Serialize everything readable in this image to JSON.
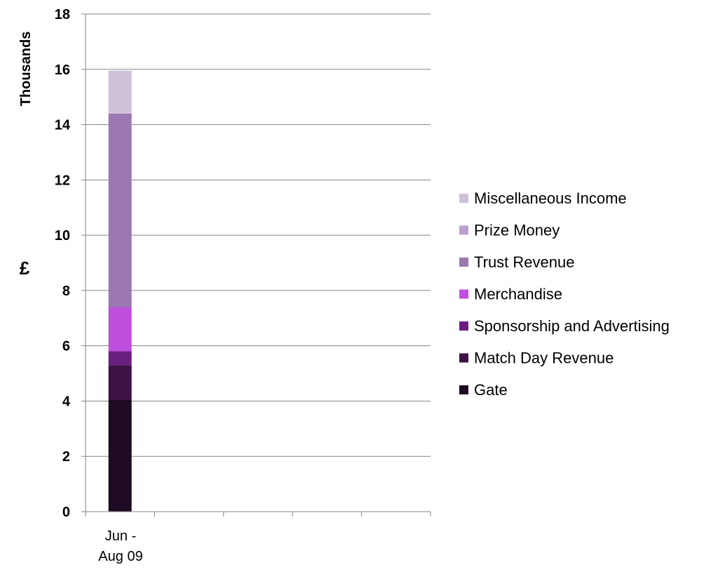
{
  "chart_data": {
    "type": "bar",
    "stacked": true,
    "categories": [
      "Jun - Aug 09"
    ],
    "category_lines": [
      "Jun -",
      "Aug 09"
    ],
    "series": [
      {
        "name": "Gate",
        "values": [
          4.05
        ],
        "color": "#1e0a22"
      },
      {
        "name": "Match Day Revenue",
        "values": [
          1.25
        ],
        "color": "#3d1245"
      },
      {
        "name": "Sponsorship and Advertising",
        "values": [
          0.5
        ],
        "color": "#6a1e80"
      },
      {
        "name": "Merchandise",
        "values": [
          1.6
        ],
        "color": "#bf4fdc"
      },
      {
        "name": "Trust Revenue",
        "values": [
          7.0
        ],
        "color": "#9b78b0"
      },
      {
        "name": "Prize Money",
        "values": [
          0
        ],
        "color": "#bca0cf"
      },
      {
        "name": "Miscellaneous Income",
        "values": [
          1.55
        ],
        "color": "#d0c1da"
      }
    ],
    "yaxis": {
      "unit_title": "Thousands",
      "title": "£",
      "ylim": [
        0,
        18
      ],
      "ticks": [
        "0",
        "2",
        "4",
        "6",
        "8",
        "10",
        "12",
        "14",
        "16",
        "18"
      ]
    },
    "grid": true,
    "legend_position": "right",
    "legend_order": "reverse"
  }
}
